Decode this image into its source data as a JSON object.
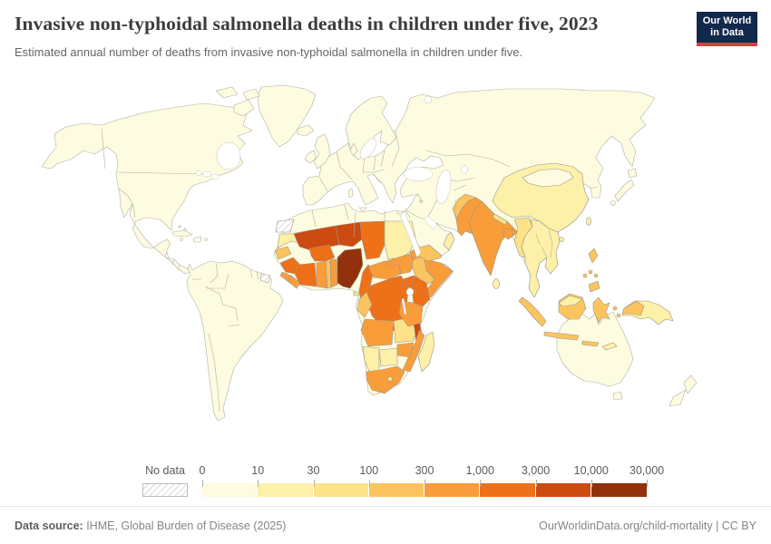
{
  "header": {
    "title": "Invasive non-typhoidal salmonella deaths in children under five, 2023",
    "subtitle": "Estimated annual number of deaths from invasive non-typhoidal salmonella in children under five.",
    "logo": {
      "line1": "Our World",
      "line2": "in Data",
      "bg_color": "#13294b",
      "accent_color": "#d7413a"
    }
  },
  "legend": {
    "no_data_label": "No data",
    "tick_labels": [
      "0",
      "10",
      "30",
      "100",
      "300",
      "1,000",
      "3,000",
      "10,000",
      "30,000"
    ],
    "bins": [
      {
        "range": "0–10",
        "color": "#fdfbe0"
      },
      {
        "range": "10–30",
        "color": "#fdf0a8"
      },
      {
        "range": "30–100",
        "color": "#fce288"
      },
      {
        "range": "100–300",
        "color": "#fcc45f"
      },
      {
        "range": "300–1,000",
        "color": "#f99d3b"
      },
      {
        "range": "1,000–3,000",
        "color": "#ee7018"
      },
      {
        "range": "3,000–10,000",
        "color": "#cd4a10"
      },
      {
        "range": "10,000–30,000",
        "color": "#92310b"
      }
    ]
  },
  "map": {
    "base_color": "#fdfbe0",
    "stroke_color": "#b3b0a3",
    "assignments": {
      "mauritania": 2,
      "mali": 7,
      "niger": 7,
      "chad": 6,
      "sudan": 2,
      "senegal": 4,
      "guinea": 6,
      "sierra-leone": 5,
      "liberia": 5,
      "cote-divoire": 6,
      "ghana": 5,
      "togo": 4,
      "benin": 5,
      "burkina-faso": 6,
      "nigeria": 8,
      "cameroon": 6,
      "central-african-republic": 5,
      "south-sudan": 5,
      "eritrea": 5,
      "ethiopia": 4,
      "somalia": 5,
      "uganda": 6,
      "kenya": 6,
      "dr-congo": 6,
      "congo": 4,
      "angola": 5,
      "zambia": 3,
      "malawi": 7,
      "tanzania": 5,
      "mozambique": 5,
      "zimbabwe": 5,
      "botswana": 2,
      "namibia": 2,
      "south-africa": 5,
      "lesotho": 3,
      "madagascar": 2,
      "equatorial-guinea": 3,
      "china": 2,
      "mongolia": 1,
      "india": 5,
      "pakistan": 5,
      "afghanistan": 4,
      "nepal": 3,
      "bangladesh": 5,
      "sri-lanka": 2,
      "myanmar": 3,
      "indochina": 2,
      "yemen": 4,
      "oman": 2,
      "taiwan": 2,
      "hainan": 2,
      "sumatra": 4,
      "java": 4,
      "kalimantan": 4,
      "malaysia-borneo": 2,
      "sulawesi": 4,
      "maluku-1": 4,
      "maluku-2": 4,
      "bali-nusa": 4,
      "timor": 2,
      "new-guinea": 2,
      "indonesian-papua": 4,
      "luzon": 4,
      "visayas-1": 4,
      "visayas-2": 4,
      "visayas-3": 4,
      "mindanao": 4
    }
  },
  "footer": {
    "source_label": "Data source:",
    "source_text": " IHME, Global Burden of Disease (2025)",
    "credit": "OurWorldinData.org/child-mortality | CC BY"
  },
  "chart_data": {
    "type": "choropleth_map",
    "title": "Invasive non-typhoidal salmonella deaths in children under five, 2023",
    "subtitle": "Estimated annual number of deaths from invasive non-typhoidal salmonella in children under five.",
    "year": 2023,
    "unit": "deaths",
    "scale": "log-like bins",
    "bin_edges": [
      0,
      10,
      30,
      100,
      300,
      1000,
      3000,
      10000,
      30000
    ],
    "bin_colors": [
      "#fdfbe0",
      "#fdf0a8",
      "#fce288",
      "#fcc45f",
      "#f99d3b",
      "#ee7018",
      "#cd4a10",
      "#92310b"
    ],
    "no_data": [
      "Western Sahara",
      "French Guiana"
    ],
    "country_values": {
      "Nigeria": "10,000–30,000",
      "Mali": "3,000–10,000",
      "Niger": "3,000–10,000",
      "Malawi": "3,000–10,000",
      "Guinea": "1,000–3,000",
      "Cote d'Ivoire": "1,000–3,000",
      "Burkina Faso": "1,000–3,000",
      "Chad": "1,000–3,000",
      "Cameroon": "1,000–3,000",
      "DR Congo": "1,000–3,000",
      "Uganda": "1,000–3,000",
      "Kenya": "1,000–3,000",
      "Sierra Leone": "300–1,000",
      "Liberia": "300–1,000",
      "Ghana": "300–1,000",
      "Benin": "300–1,000",
      "Central African Republic": "300–1,000",
      "South Sudan": "300–1,000",
      "Eritrea": "300–1,000",
      "Somalia": "300–1,000",
      "Angola": "300–1,000",
      "Tanzania": "300–1,000",
      "Mozambique": "300–1,000",
      "Zimbabwe": "300–1,000",
      "South Africa": "300–1,000",
      "India": "300–1,000",
      "Pakistan": "300–1,000",
      "Bangladesh": "300–1,000",
      "Senegal": "100–300",
      "Togo": "100–300",
      "Congo": "100–300",
      "Ethiopia": "100–300",
      "Yemen": "100–300",
      "Afghanistan": "100–300",
      "Indonesia": "100–300",
      "Philippines": "100–300",
      "Myanmar": "30–100",
      "Nepal": "30–100",
      "Zambia": "30–100",
      "Lesotho": "30–100",
      "Equatorial Guinea": "30–100",
      "Mauritania": "10–30",
      "Sudan": "10–30",
      "Madagascar": "10–30",
      "Namibia": "10–30",
      "Botswana": "10–30",
      "China": "10–30",
      "Thailand": "10–30",
      "Vietnam": "10–30",
      "Laos": "10–30",
      "Cambodia": "10–30",
      "Malaysia": "10–30",
      "Oman": "10–30",
      "Sri Lanka": "10–30",
      "Taiwan": "10–30",
      "Papua New Guinea": "10–30",
      "United States": "0–10",
      "Canada": "0–10",
      "Mexico": "0–10",
      "Brazil": "0–10",
      "Rest of Americas": "0–10",
      "Europe": "0–10",
      "Russia": "0–10",
      "Japan": "0–10",
      "South Korea": "0–10",
      "Australia": "0–10",
      "New Zealand": "0–10",
      "Saudi Arabia": "0–10",
      "Iran": "0–10",
      "Turkey": "0–10",
      "Kazakhstan": "0–10",
      "Mongolia": "0–10"
    }
  }
}
